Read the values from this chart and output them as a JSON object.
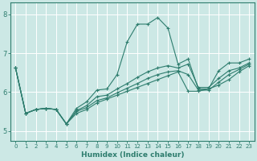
{
  "xlabel": "Humidex (Indice chaleur)",
  "xlim": [
    -0.5,
    23.5
  ],
  "ylim": [
    4.75,
    8.3
  ],
  "yticks": [
    5,
    6,
    7,
    8
  ],
  "xticks": [
    0,
    1,
    2,
    3,
    4,
    5,
    6,
    7,
    8,
    9,
    10,
    11,
    12,
    13,
    14,
    15,
    16,
    17,
    18,
    19,
    20,
    21,
    22,
    23
  ],
  "bg_color": "#cce8e5",
  "grid_color": "#ffffff",
  "line_color": "#2e7d6e",
  "line1": {
    "x": [
      0,
      1,
      2,
      3,
      4,
      5,
      6,
      7,
      8,
      9,
      10,
      11,
      12,
      13,
      14,
      15,
      16,
      17,
      18,
      19,
      20,
      21,
      22,
      23
    ],
    "y": [
      6.62,
      5.45,
      5.55,
      5.58,
      5.55,
      5.18,
      5.58,
      5.75,
      6.05,
      6.08,
      6.45,
      7.3,
      7.75,
      7.75,
      7.92,
      7.65,
      6.72,
      6.85,
      6.08,
      6.08,
      6.55,
      6.75,
      6.75,
      6.85
    ]
  },
  "line2": {
    "x": [
      0,
      1,
      2,
      3,
      4,
      5,
      6,
      7,
      8,
      9,
      10,
      11,
      12,
      13,
      14,
      15,
      16,
      17,
      18,
      19,
      20,
      21,
      22,
      23
    ],
    "y": [
      6.62,
      5.45,
      5.55,
      5.58,
      5.55,
      5.18,
      5.45,
      5.55,
      5.72,
      5.82,
      5.92,
      6.02,
      6.12,
      6.22,
      6.32,
      6.42,
      6.52,
      6.02,
      6.02,
      6.08,
      6.18,
      6.32,
      6.52,
      6.68
    ]
  },
  "line3": {
    "x": [
      0,
      1,
      2,
      3,
      4,
      5,
      6,
      7,
      8,
      9,
      10,
      11,
      12,
      13,
      14,
      15,
      16,
      17,
      18,
      19,
      20,
      21,
      22,
      23
    ],
    "y": [
      6.62,
      5.45,
      5.55,
      5.58,
      5.55,
      5.18,
      5.52,
      5.65,
      5.88,
      5.92,
      6.08,
      6.22,
      6.38,
      6.52,
      6.62,
      6.68,
      6.62,
      6.72,
      6.12,
      6.12,
      6.35,
      6.55,
      6.62,
      6.75
    ]
  },
  "line4": {
    "x": [
      0,
      1,
      2,
      3,
      4,
      5,
      6,
      7,
      8,
      9,
      10,
      11,
      12,
      13,
      14,
      15,
      16,
      17,
      18,
      19,
      20,
      21,
      22,
      23
    ],
    "y": [
      6.62,
      5.45,
      5.55,
      5.58,
      5.55,
      5.18,
      5.5,
      5.6,
      5.78,
      5.85,
      5.98,
      6.1,
      6.22,
      6.35,
      6.45,
      6.52,
      6.55,
      6.45,
      6.05,
      6.05,
      6.25,
      6.45,
      6.58,
      6.72
    ]
  }
}
